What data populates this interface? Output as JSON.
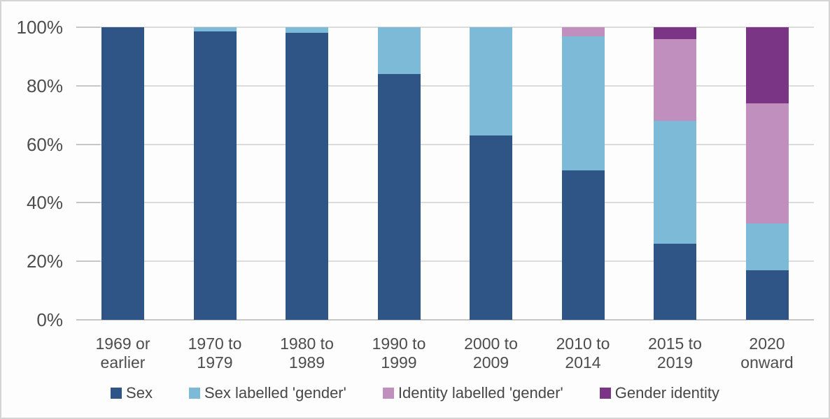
{
  "chart_data": {
    "type": "bar",
    "stacked": true,
    "title": "",
    "xlabel": "",
    "ylabel": "",
    "categories": [
      "1969 or\nearlier",
      "1970 to\n1979",
      "1980 to\n1989",
      "1990 to\n1999",
      "2000 to\n2009",
      "2010 to\n2014",
      "2015 to\n2019",
      "2020\nonward"
    ],
    "series": [
      {
        "name": "Sex",
        "color": "#2e5586",
        "values": [
          100,
          98.5,
          98,
          84,
          63,
          51,
          26,
          17
        ]
      },
      {
        "name": "Sex labelled 'gender'",
        "color": "#7dbad8",
        "values": [
          0,
          1.5,
          2,
          16,
          37,
          46,
          42,
          16
        ]
      },
      {
        "name": "Identity labelled 'gender'",
        "color": "#c08fbd",
        "values": [
          0,
          0,
          0,
          0,
          0,
          3,
          28,
          41
        ]
      },
      {
        "name": "Gender identity",
        "color": "#7b3585",
        "values": [
          0,
          0,
          0,
          0,
          0,
          0,
          4,
          26
        ]
      }
    ],
    "ytick_values": [
      0,
      20,
      40,
      60,
      80,
      100
    ],
    "ytick_labels": [
      "0%",
      "20%",
      "40%",
      "60%",
      "80%",
      "100%"
    ],
    "ylim": [
      0,
      100
    ],
    "grid": true,
    "legend_position": "bottom",
    "colors": {
      "gridline": "#dbdbdb",
      "baseline": "#c6c6c6",
      "axis_text": "#4d4d4d",
      "legend_text": "#474747",
      "background": "#fdfdfd"
    }
  }
}
